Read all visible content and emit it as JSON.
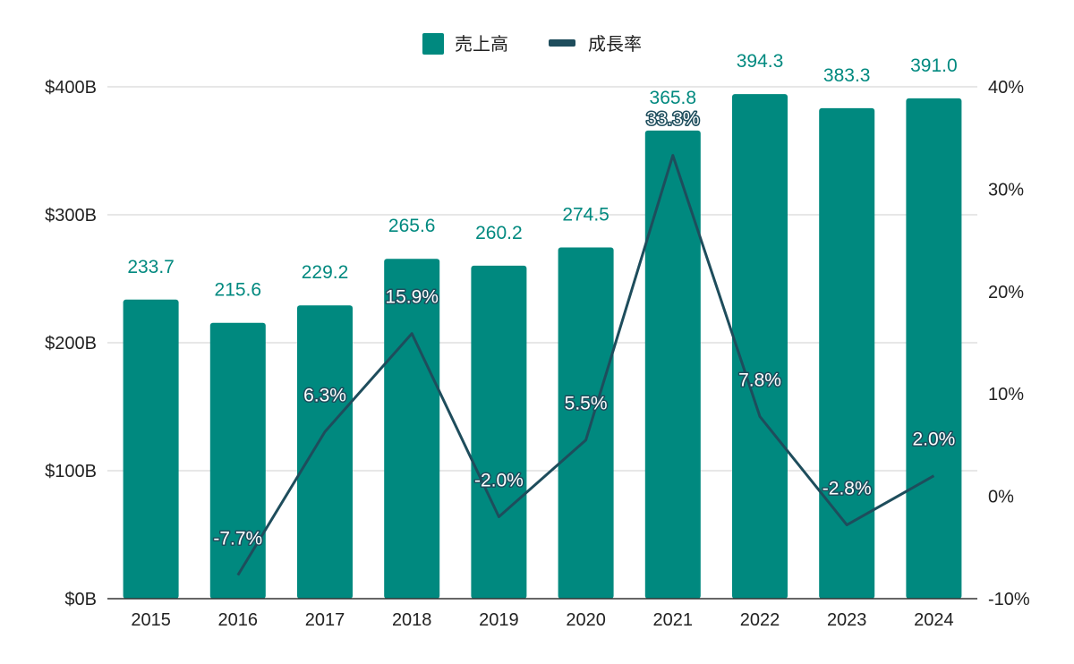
{
  "chart_data": {
    "type": "bar",
    "categories": [
      "2015",
      "2016",
      "2017",
      "2018",
      "2019",
      "2020",
      "2021",
      "2022",
      "2023",
      "2024"
    ],
    "series": [
      {
        "name": "売上高",
        "type": "bar",
        "axis": "left",
        "color": "#00897f",
        "values": [
          233.7,
          215.6,
          229.2,
          265.6,
          260.2,
          274.5,
          365.8,
          394.3,
          383.3,
          391.0
        ],
        "labels": [
          "233.7",
          "215.6",
          "229.2",
          "265.6",
          "260.2",
          "274.5",
          "365.8",
          "394.3",
          "383.3",
          "391.0"
        ]
      },
      {
        "name": "成長率",
        "type": "line",
        "axis": "right",
        "color": "#1e4d5c",
        "values": [
          null,
          -7.7,
          6.3,
          15.9,
          -2.0,
          5.5,
          33.3,
          7.8,
          -2.8,
          2.0
        ],
        "labels": [
          "",
          "-7.7%",
          "6.3%",
          "15.9%",
          "-2.0%",
          "5.5%",
          "33.3%",
          "7.8%",
          "-2.8%",
          "2.0%"
        ]
      }
    ],
    "y_left": {
      "range": [
        0,
        400
      ],
      "ticks": [
        0,
        100,
        200,
        300,
        400
      ],
      "tick_labels": [
        "$0B",
        "$100B",
        "$200B",
        "$300B",
        "$400B"
      ]
    },
    "y_right": {
      "range": [
        -10,
        40
      ],
      "ticks": [
        -10,
        0,
        10,
        20,
        30,
        40
      ],
      "tick_labels": [
        "-10%",
        "0%",
        "10%",
        "20%",
        "30%",
        "40%"
      ]
    },
    "grid": true,
    "legend_position": "top-center",
    "title": "",
    "xlabel": "",
    "ylabel": ""
  }
}
